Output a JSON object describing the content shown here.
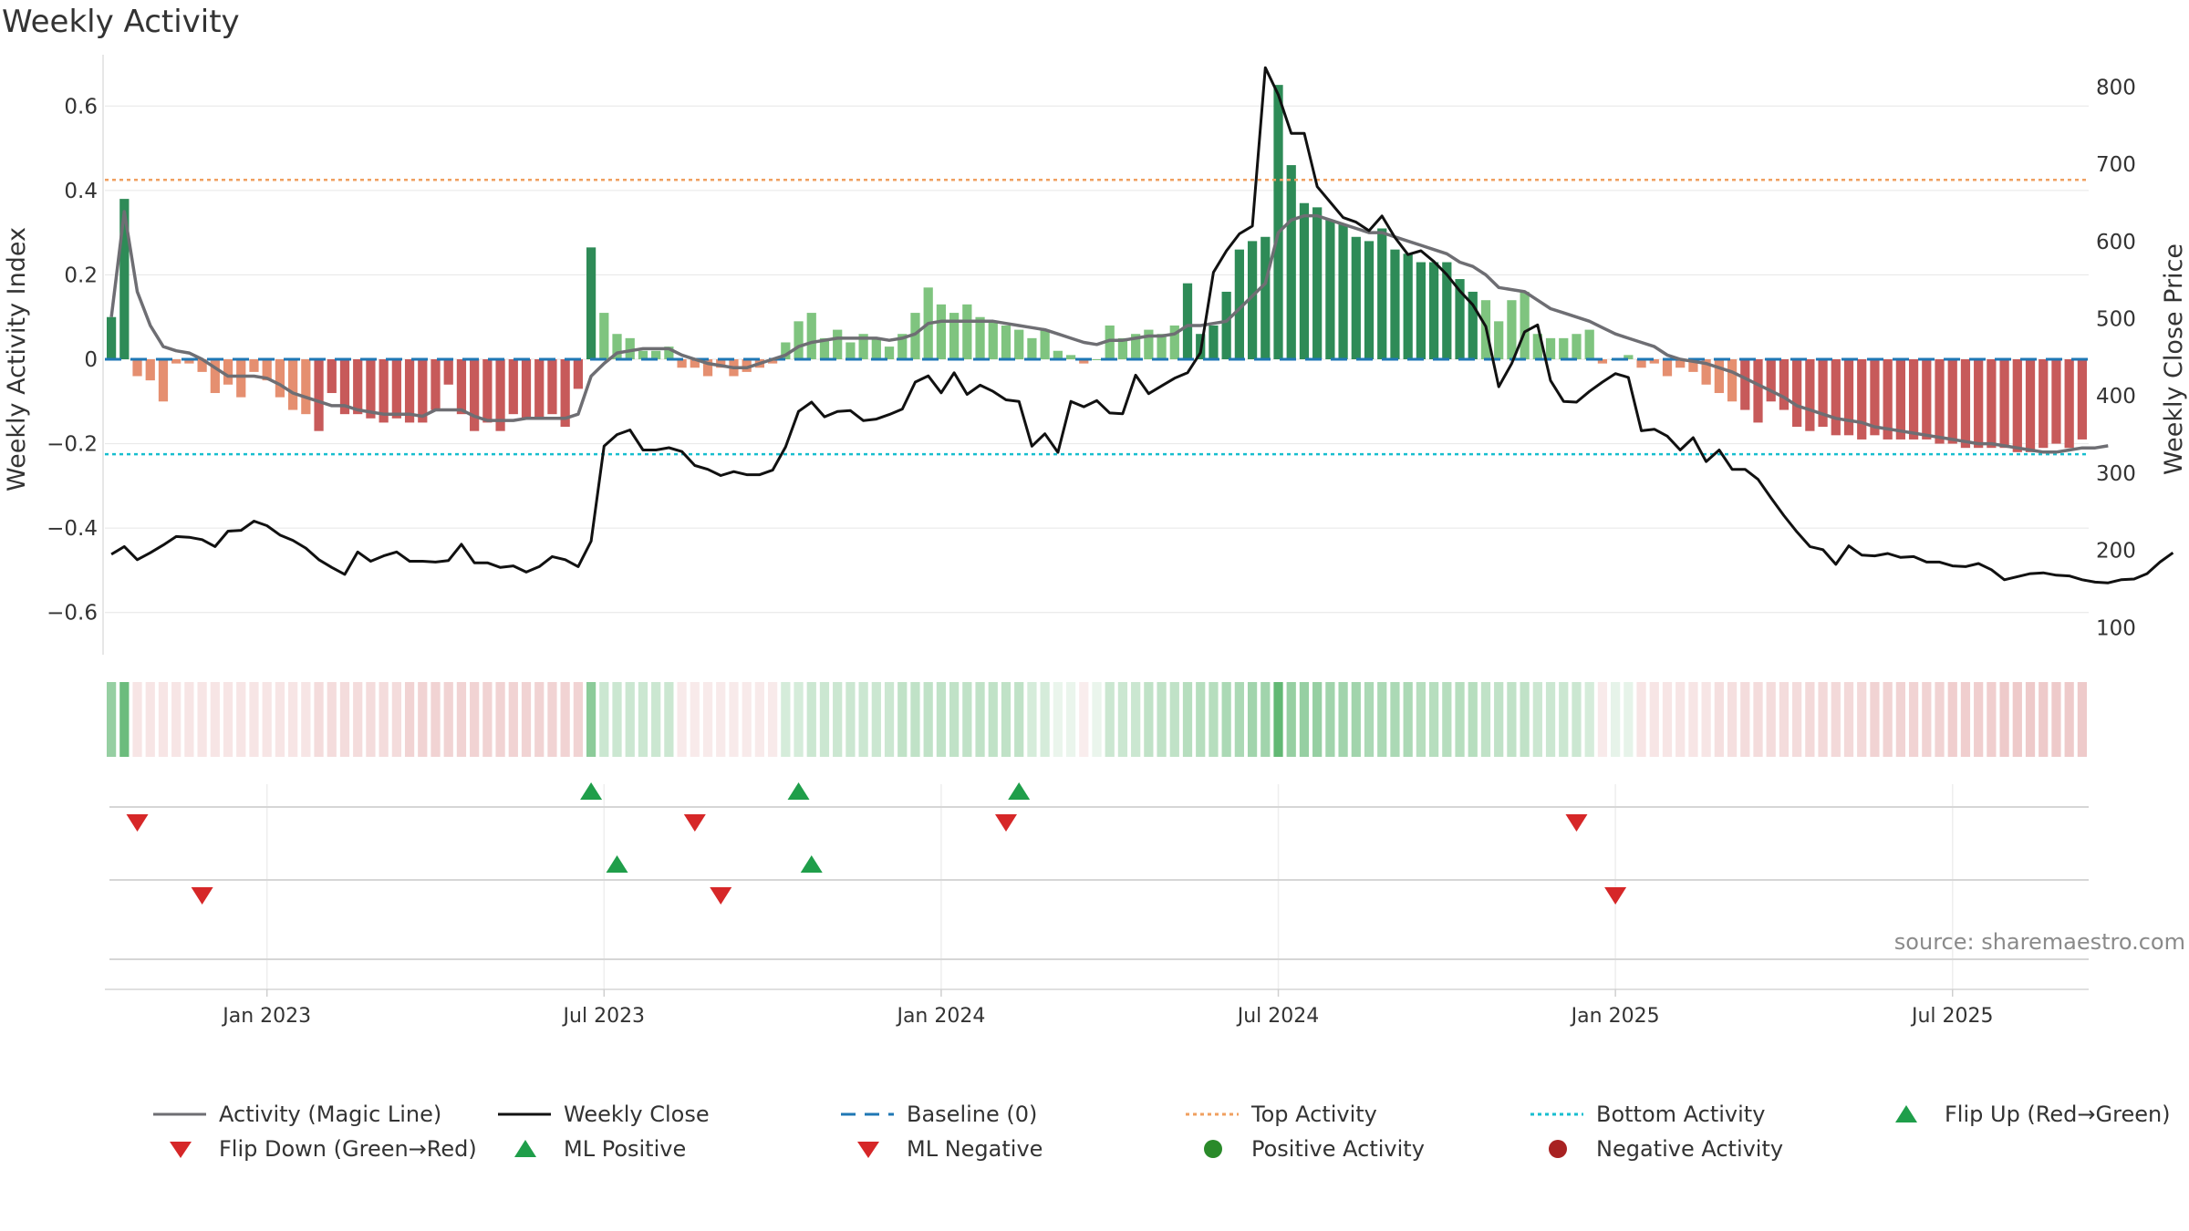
{
  "title": "Weekly Activity",
  "source": "source: sharemaestro.com",
  "colors": {
    "magic_line": "#6e6e73",
    "close": "#111111",
    "baseline": "#1f77b4",
    "top": "#f0a060",
    "bottom": "#17becf",
    "pos_strong": "#2e8b57",
    "pos_light": "#7fc47f",
    "neg_strong": "#c75a5a",
    "neg_light": "#e58f70",
    "flip_up": "#1f9e4a",
    "flip_down": "#d62728"
  },
  "chart_data": {
    "type": "bar+line",
    "title": "Weekly Activity",
    "ylabel_left": "Weekly Activity Index",
    "ylabel_right": "Weekly Close Price",
    "ylim_left": [
      -0.7,
      0.7
    ],
    "ylim_right": [
      65,
      830
    ],
    "left_ticks": [
      0.6,
      0.4,
      0.2,
      0,
      -0.2,
      -0.4,
      -0.6
    ],
    "left_tick_labels": [
      "0.6",
      "0.4",
      "0.2",
      "0",
      "−0.2",
      "−0.4",
      "−0.6"
    ],
    "right_ticks": [
      800,
      700,
      600,
      500,
      400,
      300,
      200,
      100
    ],
    "right_tick_labels": [
      "800",
      "700",
      "600",
      "500",
      "400",
      "300",
      "200",
      "100"
    ],
    "x_ticks": [
      {
        "index": 12,
        "label": "Jan 2023"
      },
      {
        "index": 38,
        "label": "Jul 2023"
      },
      {
        "index": 64,
        "label": "Jan 2024"
      },
      {
        "index": 90,
        "label": "Jul 2024"
      },
      {
        "index": 116,
        "label": "Jan 2025"
      },
      {
        "index": 142,
        "label": "Jul 2025"
      }
    ],
    "top_activity": 0.425,
    "bottom_activity": -0.225,
    "baseline": 0,
    "activity": [
      0.1,
      0.38,
      -0.04,
      -0.05,
      -0.1,
      -0.01,
      -0.01,
      -0.03,
      -0.08,
      -0.06,
      -0.09,
      -0.03,
      -0.05,
      -0.09,
      -0.12,
      -0.13,
      -0.17,
      -0.08,
      -0.13,
      -0.13,
      -0.14,
      -0.15,
      -0.14,
      -0.15,
      -0.15,
      -0.12,
      -0.06,
      -0.13,
      -0.17,
      -0.15,
      -0.17,
      -0.13,
      -0.14,
      -0.14,
      -0.13,
      -0.16,
      -0.07,
      0.265,
      0.11,
      0.06,
      0.05,
      0.02,
      0.02,
      0.03,
      -0.02,
      -0.02,
      -0.04,
      -0.02,
      -0.04,
      -0.03,
      -0.02,
      -0.01,
      0.04,
      0.09,
      0.11,
      0.05,
      0.07,
      0.04,
      0.06,
      0.05,
      0.03,
      0.06,
      0.11,
      0.17,
      0.13,
      0.11,
      0.13,
      0.1,
      0.09,
      0.08,
      0.07,
      0.05,
      0.07,
      0.02,
      0.01,
      -0.01,
      0.0,
      0.08,
      0.05,
      0.06,
      0.07,
      0.06,
      0.08,
      0.18,
      0.06,
      0.08,
      0.16,
      0.26,
      0.28,
      0.29,
      0.65,
      0.46,
      0.37,
      0.36,
      0.33,
      0.32,
      0.29,
      0.28,
      0.31,
      0.26,
      0.25,
      0.23,
      0.23,
      0.23,
      0.19,
      0.16,
      0.14,
      0.09,
      0.14,
      0.16,
      0.06,
      0.05,
      0.05,
      0.06,
      0.07,
      -0.01,
      0.0,
      0.01,
      -0.02,
      -0.01,
      -0.04,
      -0.02,
      -0.03,
      -0.06,
      -0.08,
      -0.1,
      -0.12,
      -0.15,
      -0.1,
      -0.12,
      -0.16,
      -0.17,
      -0.16,
      -0.18,
      -0.18,
      -0.19,
      -0.18,
      -0.19,
      -0.19,
      -0.19,
      -0.19,
      -0.2,
      -0.2,
      -0.21,
      -0.21,
      -0.21,
      -0.21,
      -0.22,
      -0.22,
      -0.21,
      -0.2,
      -0.21,
      -0.19
    ],
    "magic_line": [
      0.1,
      0.35,
      0.16,
      0.08,
      0.03,
      0.02,
      0.015,
      0.0,
      -0.02,
      -0.04,
      -0.04,
      -0.04,
      -0.045,
      -0.06,
      -0.08,
      -0.09,
      -0.1,
      -0.11,
      -0.11,
      -0.12,
      -0.125,
      -0.13,
      -0.13,
      -0.13,
      -0.135,
      -0.12,
      -0.12,
      -0.12,
      -0.135,
      -0.145,
      -0.145,
      -0.145,
      -0.14,
      -0.14,
      -0.14,
      -0.14,
      -0.13,
      -0.04,
      -0.01,
      0.015,
      0.02,
      0.025,
      0.025,
      0.025,
      0.01,
      0.0,
      -0.01,
      -0.015,
      -0.02,
      -0.02,
      -0.01,
      0.0,
      0.01,
      0.03,
      0.04,
      0.045,
      0.05,
      0.05,
      0.05,
      0.05,
      0.045,
      0.05,
      0.06,
      0.085,
      0.09,
      0.09,
      0.09,
      0.09,
      0.09,
      0.085,
      0.08,
      0.075,
      0.07,
      0.06,
      0.05,
      0.04,
      0.035,
      0.045,
      0.045,
      0.05,
      0.055,
      0.055,
      0.06,
      0.08,
      0.08,
      0.085,
      0.09,
      0.12,
      0.15,
      0.18,
      0.3,
      0.33,
      0.34,
      0.34,
      0.33,
      0.32,
      0.31,
      0.3,
      0.3,
      0.29,
      0.28,
      0.27,
      0.26,
      0.25,
      0.23,
      0.22,
      0.2,
      0.17,
      0.165,
      0.16,
      0.14,
      0.12,
      0.11,
      0.1,
      0.09,
      0.075,
      0.06,
      0.05,
      0.04,
      0.03,
      0.01,
      0.0,
      -0.005,
      -0.01,
      -0.02,
      -0.03,
      -0.045,
      -0.06,
      -0.075,
      -0.09,
      -0.11,
      -0.12,
      -0.13,
      -0.14,
      -0.145,
      -0.15,
      -0.16,
      -0.165,
      -0.17,
      -0.175,
      -0.18,
      -0.185,
      -0.19,
      -0.195,
      -0.2,
      -0.2,
      -0.205,
      -0.21,
      -0.215,
      -0.22,
      -0.22,
      -0.215,
      -0.21,
      -0.21,
      -0.205
    ],
    "weekly_close": [
      195,
      205,
      188,
      197,
      207,
      218,
      217,
      214,
      205,
      225,
      226,
      238,
      232,
      220,
      213,
      203,
      188,
      178,
      169,
      198,
      186,
      193,
      198,
      186,
      186,
      185,
      187,
      208,
      184,
      184,
      178,
      180,
      172,
      179,
      192,
      188,
      179,
      212,
      335,
      350,
      356,
      330,
      330,
      333,
      328,
      310,
      305,
      297,
      302,
      298,
      298,
      304,
      334,
      380,
      392,
      373,
      380,
      381,
      368,
      370,
      376,
      383,
      418,
      426,
      404,
      430,
      402,
      414,
      406,
      395,
      393,
      335,
      351,
      327,
      393,
      386,
      394,
      378,
      377,
      427,
      403,
      413,
      423,
      430,
      456,
      560,
      588,
      610,
      620,
      825,
      790,
      740,
      740,
      671,
      651,
      631,
      625,
      614,
      633,
      605,
      583,
      588,
      574,
      557,
      536,
      518,
      490,
      412,
      442,
      483,
      492,
      420,
      393,
      392,
      406,
      418,
      429,
      424,
      355,
      357,
      348,
      330,
      346,
      315,
      330,
      305,
      305,
      292,
      268,
      245,
      224,
      205,
      201,
      182,
      206,
      194,
      193,
      196,
      191,
      192,
      185,
      185,
      180,
      179,
      183,
      175,
      162,
      166,
      170,
      171,
      168,
      167,
      162,
      159,
      158,
      162,
      163,
      170,
      185,
      197
    ],
    "strength": [
      0.5,
      0.7,
      0.15,
      0.15,
      0.15,
      0.15,
      0.15,
      0.15,
      0.15,
      0.15,
      0.15,
      0.15,
      0.15,
      0.15,
      0.15,
      0.15,
      0.2,
      0.2,
      0.2,
      0.2,
      0.2,
      0.2,
      0.2,
      0.25,
      0.25,
      0.25,
      0.25,
      0.25,
      0.25,
      0.25,
      0.25,
      0.25,
      0.25,
      0.25,
      0.25,
      0.25,
      0.25,
      0.55,
      0.25,
      0.25,
      0.25,
      0.25,
      0.25,
      0.25,
      0.12,
      0.12,
      0.12,
      0.12,
      0.12,
      0.12,
      0.12,
      0.12,
      0.2,
      0.2,
      0.25,
      0.25,
      0.25,
      0.25,
      0.25,
      0.25,
      0.25,
      0.3,
      0.3,
      0.3,
      0.3,
      0.3,
      0.3,
      0.3,
      0.3,
      0.3,
      0.3,
      0.2,
      0.2,
      0.1,
      0.1,
      0.1,
      0.1,
      0.25,
      0.25,
      0.25,
      0.3,
      0.3,
      0.3,
      0.35,
      0.35,
      0.35,
      0.4,
      0.4,
      0.45,
      0.45,
      0.75,
      0.5,
      0.5,
      0.5,
      0.45,
      0.45,
      0.45,
      0.4,
      0.4,
      0.4,
      0.4,
      0.35,
      0.35,
      0.35,
      0.35,
      0.35,
      0.3,
      0.3,
      0.3,
      0.3,
      0.25,
      0.25,
      0.25,
      0.25,
      0.2,
      0.12,
      0.12,
      0.12,
      0.15,
      0.15,
      0.15,
      0.15,
      0.15,
      0.15,
      0.18,
      0.18,
      0.2,
      0.2,
      0.2,
      0.2,
      0.2,
      0.22,
      0.22,
      0.22,
      0.22,
      0.22,
      0.25,
      0.25,
      0.25,
      0.25,
      0.25,
      0.25,
      0.28,
      0.28,
      0.28,
      0.28,
      0.3,
      0.3,
      0.3,
      0.3,
      0.3,
      0.3,
      0.3
    ],
    "flip_up": [
      37,
      53,
      70
    ],
    "flip_down": [
      2,
      45,
      69,
      113
    ],
    "ml_positive": [
      39,
      54
    ],
    "ml_negative": [
      7,
      47,
      116
    ]
  },
  "legend": [
    {
      "label": "Activity (Magic Line)",
      "marker": "line-solid-grey"
    },
    {
      "label": "Weekly Close",
      "marker": "line-solid-black"
    },
    {
      "label": "Baseline (0)",
      "marker": "line-dashed-blue"
    },
    {
      "label": "Top Activity",
      "marker": "line-dotted-orange"
    },
    {
      "label": "Bottom Activity",
      "marker": "line-dotted-cyan"
    },
    {
      "label": "Flip Up (Red→Green)",
      "marker": "triangle-up-green"
    },
    {
      "label": "Flip Down (Green→Red)",
      "marker": "triangle-down-red"
    },
    {
      "label": "ML Positive",
      "marker": "triangle-up-green"
    },
    {
      "label": "ML Negative",
      "marker": "triangle-down-red"
    },
    {
      "label": "Positive Activity",
      "marker": "circle-green"
    },
    {
      "label": "Negative Activity",
      "marker": "circle-red"
    }
  ]
}
